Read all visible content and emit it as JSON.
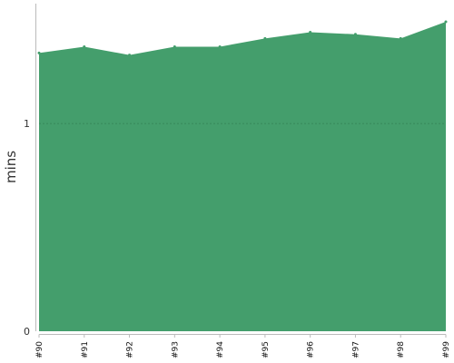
{
  "chart_data": {
    "type": "area",
    "title": "",
    "xlabel": "",
    "ylabel": "mins",
    "x": [
      "#90",
      "#91",
      "#92",
      "#93",
      "#94",
      "#95",
      "#96",
      "#97",
      "#98",
      "#99"
    ],
    "series": [
      {
        "values": [
          1.34,
          1.37,
          1.33,
          1.37,
          1.37,
          1.41,
          1.44,
          1.43,
          1.41,
          1.49
        ]
      }
    ],
    "ylim": [
      0,
      1.56
    ],
    "yticks": [
      0,
      1
    ],
    "ytick_labels": [
      "0",
      "1"
    ],
    "grid": {
      "y_at": [
        1
      ],
      "style": "dotted"
    },
    "colors": {
      "area": "#449e6c",
      "axis": "#bbbbbb",
      "grid": "#2e7a4e"
    }
  }
}
